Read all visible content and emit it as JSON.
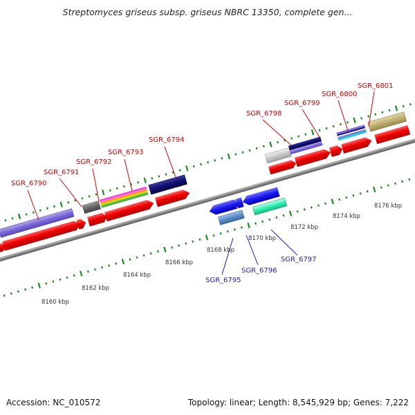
{
  "header": {
    "title": "Streptomyces griseus subsp. griseus NBRC 13350, complete gen..."
  },
  "footer": {
    "accession": "Accession: NC_010572",
    "summary": "Topology: linear; Length: 8,545,929 bp; Genes: 7,222"
  },
  "scale": {
    "labels": [
      "8160 kbp",
      "8162 kbp",
      "8164 kbp",
      "8166 kbp",
      "8168 kbp",
      "8170 kbp",
      "8172 kbp",
      "8174 kbp",
      "8176 kbp"
    ]
  },
  "genes_forward": [
    "SGR_6790",
    "SGR_6791",
    "SGR_6792",
    "SGR_6793",
    "SGR_6794",
    "SGR_6798",
    "SGR_6799",
    "SGR_6800",
    "SGR_6801"
  ],
  "genes_reverse": [
    "SGR_6795",
    "SGR_6796",
    "SGR_6797"
  ],
  "colors": {
    "forward_label": "#cc0000",
    "reverse_label": "#1a1acc",
    "cds": "#ee1111",
    "backbone": "#888888",
    "tick": "#1a8a1a"
  }
}
